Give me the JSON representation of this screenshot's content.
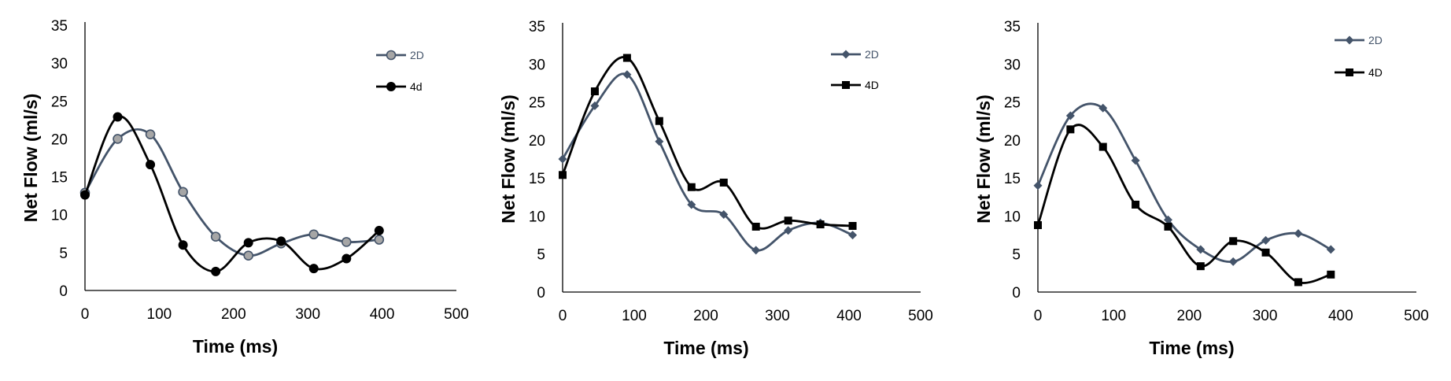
{
  "chart_data": [
    {
      "type": "line",
      "xlabel": "Time (ms)",
      "ylabel": "Net Flow (ml/s)",
      "xlim": [
        0,
        500
      ],
      "ylim": [
        0,
        35
      ],
      "xticks": [
        "0",
        "100",
        "200",
        "300",
        "400",
        "500"
      ],
      "yticks": [
        "0",
        "5",
        "10",
        "15",
        "20",
        "25",
        "30",
        "35"
      ],
      "legend_position": "top-right",
      "series": [
        {
          "name": "2D",
          "marker": "circle-hollow",
          "color": "#44546a",
          "x": [
            0,
            44,
            88,
            132,
            176,
            220,
            264,
            308,
            352,
            396
          ],
          "y": [
            12.9,
            20,
            20.6,
            13,
            7.1,
            4.6,
            6.2,
            7.4,
            6.4,
            6.7
          ]
        },
        {
          "name": "4d",
          "marker": "circle",
          "color": "#000000",
          "x": [
            0,
            44,
            88,
            132,
            176,
            220,
            264,
            308,
            352,
            396
          ],
          "y": [
            12.6,
            22.9,
            16.6,
            6,
            2.5,
            6.3,
            6.5,
            2.9,
            4.2,
            7.9
          ]
        }
      ]
    },
    {
      "type": "line",
      "xlabel": "Time (ms)",
      "ylabel": "Net Flow (ml/s)",
      "xlim": [
        0,
        500
      ],
      "ylim": [
        0,
        35
      ],
      "xticks": [
        "0",
        "100",
        "200",
        "300",
        "400",
        "500"
      ],
      "yticks": [
        "0",
        "5",
        "10",
        "15",
        "20",
        "25",
        "30",
        "35"
      ],
      "legend_position": "top-right",
      "series": [
        {
          "name": "2D",
          "marker": "diamond",
          "color": "#44546a",
          "x": [
            0,
            45,
            90,
            135,
            180,
            225,
            270,
            315,
            360,
            405
          ],
          "y": [
            17.5,
            24.5,
            28.6,
            19.8,
            11.5,
            10.2,
            5.5,
            8.1,
            9.1,
            7.5
          ]
        },
        {
          "name": "4D",
          "marker": "square",
          "color": "#000000",
          "x": [
            0,
            45,
            90,
            135,
            180,
            225,
            270,
            315,
            360,
            405
          ],
          "y": [
            15.4,
            26.4,
            30.8,
            22.5,
            13.8,
            14.4,
            8.6,
            9.4,
            8.9,
            8.7
          ]
        }
      ]
    },
    {
      "type": "line",
      "xlabel": "Time (ms)",
      "ylabel": "Net Flow (ml/s)",
      "xlim": [
        0,
        500
      ],
      "ylim": [
        0,
        35
      ],
      "xticks": [
        "0",
        "100",
        "200",
        "300",
        "400",
        "500"
      ],
      "yticks": [
        "0",
        "5",
        "10",
        "15",
        "20",
        "25",
        "30",
        "35"
      ],
      "legend_position": "top-right",
      "series": [
        {
          "name": "2D",
          "marker": "diamond",
          "color": "#44546a",
          "x": [
            0,
            43,
            86,
            129,
            172,
            215,
            258,
            301,
            344,
            387
          ],
          "y": [
            14,
            23.2,
            24.2,
            17.3,
            9.5,
            5.6,
            4,
            6.8,
            7.7,
            5.6
          ]
        },
        {
          "name": "4D",
          "marker": "square",
          "color": "#000000",
          "x": [
            0,
            43,
            86,
            129,
            172,
            215,
            258,
            301,
            344,
            387
          ],
          "y": [
            8.8,
            21.4,
            19.1,
            11.5,
            8.6,
            3.4,
            6.7,
            5.2,
            1.3,
            2.3
          ]
        }
      ]
    }
  ]
}
